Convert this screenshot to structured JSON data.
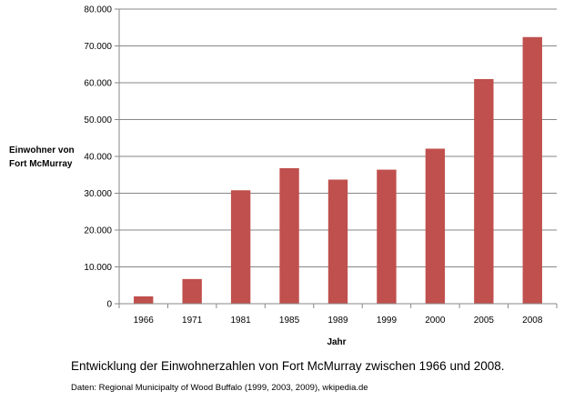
{
  "chart_data": {
    "type": "bar",
    "categories": [
      "1966",
      "1971",
      "1981",
      "1985",
      "1989",
      "1999",
      "2000",
      "2005",
      "2008"
    ],
    "values": [
      2000,
      6700,
      30800,
      36800,
      33700,
      36400,
      42100,
      61000,
      72400
    ],
    "title": "",
    "xlabel": "Jahr",
    "ylabel_lines": [
      "Einwohner von",
      "Fort McMurray"
    ],
    "ylim": [
      0,
      80000
    ],
    "yticks": [
      0,
      10000,
      20000,
      30000,
      40000,
      50000,
      60000,
      70000,
      80000
    ],
    "ytick_labels": [
      "0",
      "10.000",
      "20.000",
      "30.000",
      "40.000",
      "50.000",
      "60.000",
      "70.000",
      "80.000"
    ],
    "grid": true,
    "legend": "none",
    "bar_color": "#c0504d"
  },
  "caption": "Entwicklung der Einwohnerzahlen von Fort McMurray zwischen 1966 und 2008.",
  "source": "Daten: Regional Municipalty of Wood Buffalo (1999, 2003, 2009), wkipedia.de"
}
